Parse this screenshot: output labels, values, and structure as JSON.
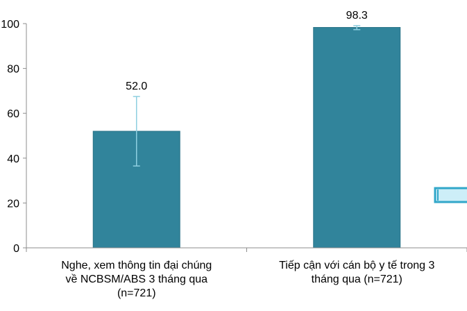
{
  "chart_data": {
    "type": "bar",
    "categories": [
      [
        "Nghe, xem thông tin đại chúng",
        "về NCBSM/ABS 3 tháng qua",
        "(n=721)"
      ],
      [
        "Tiếp cận với cán bộ y tế trong 3",
        "tháng qua (n=721)"
      ]
    ],
    "values": [
      52.0,
      98.3
    ],
    "data_labels": [
      "52.0",
      "98.3"
    ],
    "error_bars": [
      {
        "low": 36.5,
        "high": 67.5
      },
      {
        "low": 97.3,
        "high": 99.1
      }
    ],
    "ylim": [
      0,
      100
    ],
    "yticks": [
      0,
      20,
      40,
      60,
      80,
      100
    ],
    "ytick_labels": [
      "0",
      "20",
      "40",
      "60",
      "80",
      "100"
    ],
    "title": "",
    "xlabel": "",
    "ylabel": "",
    "grid": false,
    "legend": "none",
    "colors": {
      "bar": "#31849b",
      "bar_edge": "#2a7488",
      "error_bar": "#8ecfe0",
      "axis": "#8c8c8c",
      "legend_swatch_fill": "#cdeef8",
      "legend_swatch_border": "#31a7c9"
    }
  }
}
